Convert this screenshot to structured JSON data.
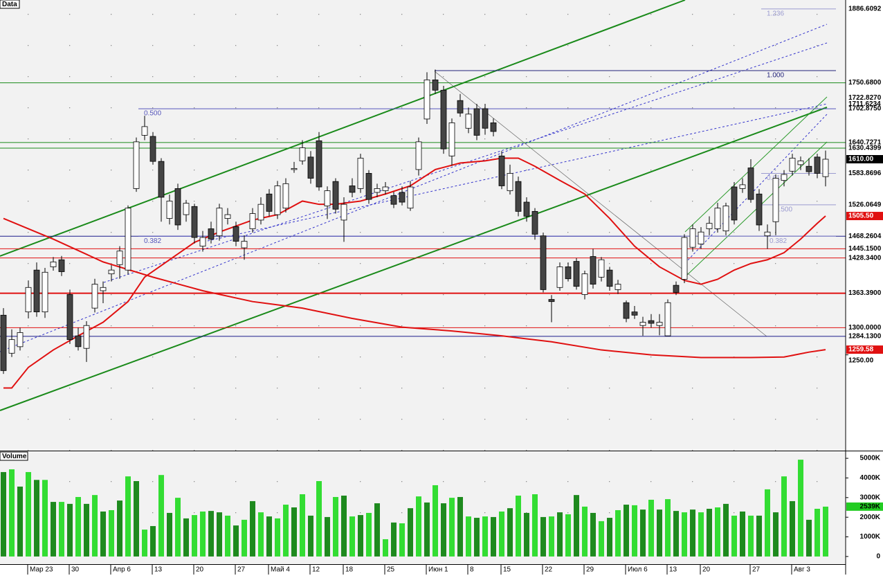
{
  "chart_data": {
    "type": "candlestick",
    "title": "Data",
    "categories": [
      null,
      null,
      null,
      "Мар 23",
      null,
      null,
      null,
      null,
      "30",
      null,
      null,
      null,
      null,
      "Апр 6",
      null,
      null,
      null,
      null,
      "13",
      null,
      null,
      null,
      null,
      "20",
      null,
      null,
      null,
      null,
      "27",
      null,
      null,
      null,
      "Май 4",
      null,
      null,
      null,
      null,
      "12",
      null,
      null,
      null,
      "18",
      null,
      null,
      null,
      null,
      "25",
      null,
      null,
      null,
      null,
      "Июн 1",
      null,
      null,
      null,
      null,
      "8",
      null,
      null,
      null,
      "15",
      null,
      null,
      null,
      null,
      "22",
      null,
      null,
      null,
      null,
      "29",
      null,
      null,
      null,
      null,
      "Июл 6",
      null,
      null,
      null,
      null,
      "13",
      null,
      null,
      null,
      "20",
      null,
      null,
      null,
      null,
      null,
      "27",
      null,
      null,
      null,
      null,
      "Авг 3",
      null,
      null,
      null,
      null
    ],
    "open": [
      1323,
      1253,
      1265,
      1329,
      1406,
      1329,
      1412,
      1425,
      1361,
      1285,
      1262,
      1336,
      1368,
      1399,
      1416,
      1406,
      1556,
      1654,
      1652,
      1606,
      1501,
      1556,
      1508,
      1523,
      1450,
      1482,
      1469,
      1501,
      1486,
      1447,
      1482,
      1498,
      1546,
      1508,
      1520,
      1591,
      1607,
      1614,
      1644,
      1524,
      1569,
      1498,
      1561,
      1556,
      1584,
      1549,
      1552,
      1543,
      1549,
      1520,
      1591,
      1684,
      1756,
      1737,
      1616,
      1718,
      1667,
      1703,
      1703,
      1677,
      1616,
      1552,
      1569,
      1531,
      1514,
      1469,
      1352,
      1374,
      1412,
      1422,
      1361,
      1431,
      1393,
      1406,
      1370,
      1346,
      1329,
      1304,
      1313,
      1304,
      1285,
      1378,
      1389,
      1448,
      1454,
      1482,
      1482,
      1478,
      1559,
      1556,
      1594,
      1546,
      1469,
      1495,
      1571,
      1588,
      1600,
      1597,
      1614,
      1578
    ],
    "high": [
      1336,
      1297,
      1300,
      1387,
      1420,
      1410,
      1430,
      1432,
      1370,
      1300,
      1312,
      1390,
      1385,
      1415,
      1450,
      1525,
      1650,
      1690,
      1660,
      1612,
      1545,
      1565,
      1535,
      1528,
      1478,
      1495,
      1528,
      1520,
      1495,
      1470,
      1520,
      1540,
      1555,
      1570,
      1575,
      1605,
      1645,
      1625,
      1660,
      1560,
      1575,
      1540,
      1575,
      1620,
      1590,
      1565,
      1568,
      1550,
      1560,
      1570,
      1650,
      1770,
      1775,
      1745,
      1685,
      1730,
      1705,
      1712,
      1712,
      1685,
      1625,
      1600,
      1578,
      1540,
      1520,
      1475,
      1360,
      1420,
      1420,
      1428,
      1405,
      1445,
      1430,
      1412,
      1388,
      1350,
      1340,
      1320,
      1325,
      1325,
      1352,
      1385,
      1472,
      1490,
      1485,
      1505,
      1530,
      1530,
      1568,
      1575,
      1610,
      1555,
      1490,
      1582,
      1590,
      1620,
      1615,
      1612,
      1620,
      1626
    ],
    "low": [
      1215,
      1246,
      1258,
      1317,
      1320,
      1318,
      1405,
      1395,
      1270,
      1258,
      1237,
      1328,
      1345,
      1385,
      1390,
      1398,
      1550,
      1645,
      1600,
      1495,
      1490,
      1480,
      1495,
      1455,
      1440,
      1455,
      1460,
      1490,
      1450,
      1425,
      1475,
      1490,
      1505,
      1500,
      1512,
      1585,
      1600,
      1565,
      1552,
      1500,
      1510,
      1458,
      1540,
      1548,
      1528,
      1540,
      1545,
      1520,
      1525,
      1515,
      1580,
      1675,
      1730,
      1620,
      1598,
      1688,
      1658,
      1645,
      1655,
      1652,
      1555,
      1545,
      1505,
      1495,
      1462,
      1365,
      1310,
      1368,
      1385,
      1370,
      1352,
      1372,
      1385,
      1368,
      1362,
      1310,
      1316,
      1285,
      1300,
      1286,
      1285,
      1360,
      1382,
      1440,
      1445,
      1470,
      1475,
      1470,
      1490,
      1548,
      1530,
      1478,
      1445,
      1470,
      1560,
      1580,
      1590,
      1580,
      1575,
      1560
    ],
    "close": [
      1221,
      1278,
      1291,
      1374,
      1329,
      1402,
      1421,
      1403,
      1278,
      1265,
      1304,
      1380,
      1374,
      1406,
      1441,
      1520,
      1642,
      1670,
      1606,
      1540,
      1533,
      1489,
      1529,
      1466,
      1466,
      1463,
      1520,
      1508,
      1459,
      1459,
      1510,
      1527,
      1514,
      1561,
      1565,
      1593,
      1631,
      1575,
      1559,
      1552,
      1518,
      1527,
      1549,
      1612,
      1536,
      1556,
      1559,
      1527,
      1531,
      1559,
      1642,
      1756,
      1737,
      1629,
      1677,
      1695,
      1693,
      1654,
      1667,
      1661,
      1561,
      1584,
      1514,
      1505,
      1472,
      1370,
      1348,
      1412,
      1390,
      1376,
      1399,
      1380,
      1425,
      1376,
      1380,
      1317,
      1323,
      1310,
      1308,
      1310,
      1346,
      1365,
      1466,
      1482,
      1476,
      1492,
      1520,
      1524,
      1498,
      1563,
      1536,
      1489,
      1476,
      1575,
      1582,
      1612,
      1607,
      1587,
      1584,
      1610
    ],
    "up_color": "#ffffff",
    "down_color": "#444444",
    "ylim": [
      1075,
      1903
    ],
    "yticks": [
      {
        "value": 1250,
        "label": "1250.00"
      }
    ],
    "levels": [
      {
        "value": 1886.6092,
        "label": "1886.6092"
      },
      {
        "value": 1750.68,
        "label": "1750.6800",
        "line": "#1a8a1a"
      },
      {
        "value": 1722.827,
        "label": "1722.8270"
      },
      {
        "value": 1711.6234,
        "label": "1711.6234"
      },
      {
        "value": 1702.875,
        "label": "1702.8750"
      },
      {
        "value": 1640.7271,
        "label": "1640.7271",
        "line": "#1a8a1a"
      },
      {
        "value": 1630.4399,
        "label": "1630.4399",
        "line": "#1a8a1a"
      },
      {
        "value": 1610,
        "label": "1610.00",
        "box": "#000000"
      },
      {
        "value": 1583.8696,
        "label": "1583.8696"
      },
      {
        "value": 1526.0649,
        "label": "1526.0649"
      },
      {
        "value": 1505.5,
        "label": "1505.50",
        "box": "#e01010"
      },
      {
        "value": 1468.2604,
        "label": "1468.2604",
        "line": "#1a1a8a"
      },
      {
        "value": 1445.15,
        "label": "1445.1500",
        "line": "#e01010"
      },
      {
        "value": 1428.34,
        "label": "1428.3400",
        "line": "#e01010"
      },
      {
        "value": 1363.39,
        "label": "1363.3900",
        "line": "#e01010",
        "width": 2
      },
      {
        "value": 1300,
        "label": "1300.0000",
        "line": "#e01010"
      },
      {
        "value": 1284.13,
        "label": "1284.1300",
        "line": "#1a1a8a"
      },
      {
        "value": 1259.58,
        "label": "1259.58",
        "box": "#e01010"
      }
    ],
    "fib_levels": [
      {
        "value": 1886.6092,
        "label": "1.236",
        "color": "#9a9ad0"
      },
      {
        "value": 1773,
        "label": "1.000",
        "color": "#22227a"
      },
      {
        "value": 1702.875,
        "label": "0.500",
        "color": "#5555bb"
      },
      {
        "value": 1468.2604,
        "label": "0.382",
        "color": "#5555bb"
      },
      {
        "value": 1583.8696,
        "label": "0.618",
        "color": "#9a9ad0"
      },
      {
        "value": 1526.0649,
        "label": "0.500",
        "color": "#9a9ad0"
      },
      {
        "value": 1468.2604,
        "label": "0.382",
        "color": "#9a9ad0"
      }
    ],
    "moving_averages": [
      {
        "color": "#e01010",
        "x": [
          0,
          1,
          3,
          6,
          9,
          12,
          15,
          17,
          20,
          23,
          26,
          30,
          33,
          36,
          38,
          40,
          43,
          46,
          49,
          52,
          55,
          58,
          60,
          62,
          64,
          67,
          70,
          73,
          76,
          79,
          82,
          84,
          86,
          88,
          90,
          92,
          94,
          96,
          98,
          99
        ],
        "values": [
          1189,
          1189,
          1227,
          1259,
          1285,
          1310,
          1348,
          1393,
          1425,
          1457,
          1476,
          1498,
          1508,
          1533,
          1527,
          1527,
          1533,
          1546,
          1561,
          1591,
          1603,
          1607,
          1612,
          1612,
          1597,
          1571,
          1546,
          1501,
          1450,
          1412,
          1387,
          1380,
          1389,
          1406,
          1418,
          1425,
          1438,
          1463,
          1492,
          1505.5
        ]
      },
      {
        "color": "#e01010",
        "x": [
          0,
          6,
          12,
          18,
          24,
          30,
          36,
          42,
          48,
          54,
          60,
          66,
          72,
          78,
          84,
          90,
          94,
          97,
          99
        ],
        "values": [
          1501,
          1463,
          1421,
          1393,
          1368,
          1348,
          1336,
          1317,
          1301,
          1294,
          1285,
          1274,
          1259,
          1250,
          1245,
          1245,
          1246,
          1255,
          1259.58
        ]
      }
    ],
    "volume": {
      "title": "Volume",
      "values": [
        4300,
        4440,
        3560,
        4300,
        3900,
        3900,
        2780,
        2780,
        2680,
        3030,
        2680,
        3130,
        2290,
        2360,
        2850,
        4080,
        3840,
        1370,
        1550,
        4150,
        2220,
        2990,
        1940,
        2110,
        2290,
        2320,
        2250,
        2080,
        1580,
        1870,
        2820,
        2250,
        2040,
        1940,
        2640,
        2500,
        3170,
        2080,
        3840,
        2010,
        3030,
        3100,
        2040,
        2110,
        2220,
        2710,
        880,
        1730,
        1690,
        2460,
        3060,
        2750,
        3630,
        2710,
        2990,
        3030,
        2040,
        1970,
        2040,
        2010,
        2290,
        2460,
        3100,
        2220,
        3170,
        2010,
        2040,
        2250,
        2150,
        3130,
        2540,
        2220,
        1800,
        1970,
        2360,
        2640,
        2610,
        2390,
        2890,
        2390,
        2920,
        2320,
        2250,
        2390,
        2250,
        2430,
        2500,
        2680,
        2080,
        2290,
        2080,
        2080,
        3420,
        2250,
        4080,
        2820,
        4930,
        1870,
        2430,
        2539
      ],
      "colors": [
        "#1e8a1e",
        "#33dd33",
        "#1e8a1e",
        "#33dd33",
        "#1e8a1e",
        "#33dd33",
        "#1e8a1e",
        "#33dd33",
        "#1e8a1e",
        "#33dd33",
        "#1e8a1e",
        "#33dd33",
        "#1e8a1e",
        "#33dd33",
        "#1e8a1e",
        "#33dd33",
        "#1e8a1e",
        "#33dd33",
        "#1e8a1e",
        "#33dd33",
        "#1e8a1e",
        "#33dd33",
        "#1e8a1e",
        "#33dd33",
        "#33dd33",
        "#1e8a1e",
        "#1e8a1e",
        "#33dd33",
        "#1e8a1e",
        "#33dd33",
        "#1e8a1e",
        "#33dd33",
        "#1e8a1e",
        "#33dd33",
        "#33dd33",
        "#1e8a1e",
        "#33dd33",
        "#1e8a1e",
        "#33dd33",
        "#1e8a1e",
        "#33dd33",
        "#1e8a1e",
        "#33dd33",
        "#1e8a1e",
        "#33dd33",
        "#1e8a1e",
        "#33dd33",
        "#1e8a1e",
        "#33dd33",
        "#1e8a1e",
        "#33dd33",
        "#1e8a1e",
        "#33dd33",
        "#1e8a1e",
        "#33dd33",
        "#1e8a1e",
        "#33dd33",
        "#1e8a1e",
        "#33dd33",
        "#1e8a1e",
        "#33dd33",
        "#1e8a1e",
        "#33dd33",
        "#1e8a1e",
        "#33dd33",
        "#1e8a1e",
        "#33dd33",
        "#1e8a1e",
        "#33dd33",
        "#1e8a1e",
        "#33dd33",
        "#1e8a1e",
        "#33dd33",
        "#1e8a1e",
        "#33dd33",
        "#1e8a1e",
        "#33dd33",
        "#1e8a1e",
        "#33dd33",
        "#1e8a1e",
        "#33dd33",
        "#1e8a1e",
        "#33dd33",
        "#1e8a1e",
        "#33dd33",
        "#1e8a1e",
        "#33dd33",
        "#1e8a1e",
        "#33dd33",
        "#1e8a1e",
        "#33dd33",
        "#1e8a1e",
        "#33dd33",
        "#1e8a1e",
        "#33dd33",
        "#1e8a1e",
        "#33dd33",
        "#1e8a1e",
        "#33dd33",
        "#33dd33"
      ],
      "ylim": [
        -390,
        5250
      ],
      "yticks": [
        0,
        {
          "value": 1000,
          "label": "1000K"
        },
        {
          "value": 2000,
          "label": "2000K"
        },
        {
          "value": 3000,
          "label": "3000K"
        },
        {
          "value": 4000,
          "label": "4000K"
        },
        {
          "value": 5000,
          "label": "5000K"
        }
      ],
      "marker": {
        "value": 2539,
        "label": "2539K",
        "box": "#22cc22"
      }
    }
  }
}
